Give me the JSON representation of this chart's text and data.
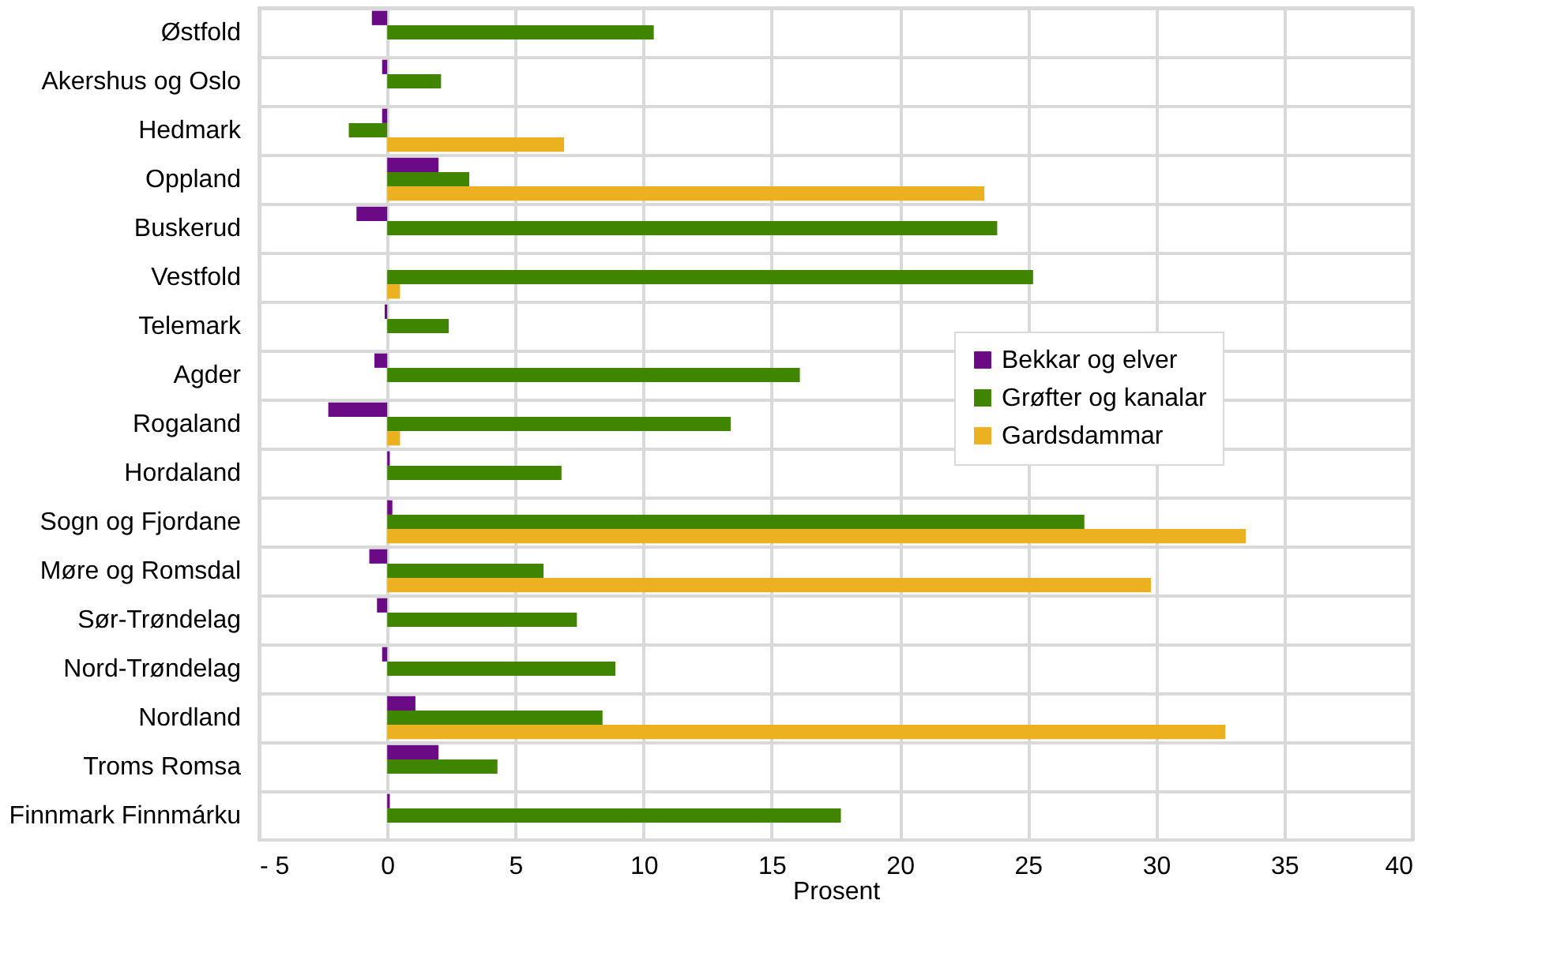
{
  "chart_data": {
    "type": "bar",
    "orientation": "horizontal",
    "xlabel": "Prosent",
    "categories": [
      "Østfold",
      "Akershus og Oslo",
      "Hedmark",
      "Oppland",
      "Buskerud",
      "Vestfold",
      "Telemark",
      "Agder",
      "Rogaland",
      "Hordaland",
      "Sogn og Fjordane",
      "Møre og Romsdal",
      "Sør-Trøndelag",
      "Nord-Trøndelag",
      "Nordland",
      "Troms Romsa",
      "Finnmark Finnmárku"
    ],
    "series": [
      {
        "name": "Bekkar og elver",
        "color": "#6a0a85",
        "values": [
          -0.6,
          -0.2,
          -0.2,
          2.0,
          -1.2,
          null,
          -0.1,
          -0.5,
          -2.3,
          0.1,
          0.2,
          -0.7,
          -0.4,
          -0.2,
          1.1,
          2.0,
          0.1
        ]
      },
      {
        "name": "Grøfter og kanalar",
        "color": "#3f8500",
        "values": [
          10.4,
          2.1,
          -1.5,
          3.2,
          23.8,
          25.2,
          2.4,
          16.1,
          13.4,
          6.8,
          27.2,
          6.1,
          7.4,
          8.9,
          8.4,
          4.3,
          17.7
        ]
      },
      {
        "name": "Gardsdammar",
        "color": "#ebb121",
        "values": [
          null,
          null,
          6.9,
          23.3,
          null,
          0.5,
          null,
          null,
          0.5,
          null,
          33.5,
          29.8,
          null,
          null,
          32.7,
          null,
          null
        ]
      }
    ],
    "xlim": [
      -5,
      40
    ],
    "xticks": [
      {
        "value": -5,
        "label": "- 5"
      },
      0,
      5,
      10,
      15,
      20,
      25,
      30,
      35,
      40
    ],
    "grid": true,
    "legend": "right"
  }
}
